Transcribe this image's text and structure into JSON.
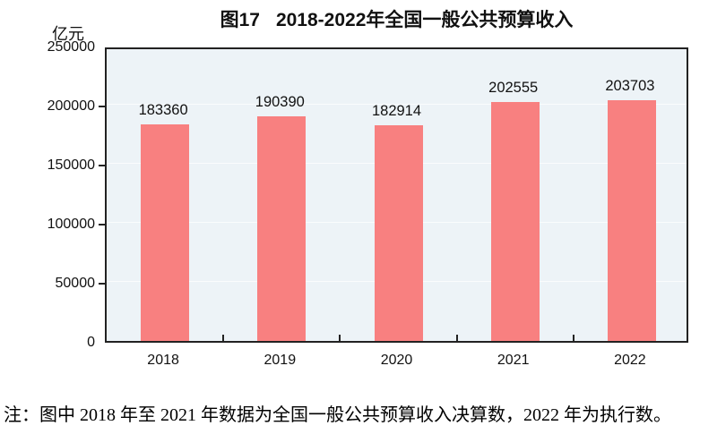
{
  "header": {
    "figure_label": "图17",
    "title": "2018-2022年全国一般公共预算收入"
  },
  "chart_data": {
    "type": "bar",
    "title": "图17　2018-2022年全国一般公共预算收入",
    "categories": [
      "2018",
      "2019",
      "2020",
      "2021",
      "2022"
    ],
    "values": [
      183360,
      190390,
      182914,
      202555,
      203703
    ],
    "xlabel": "",
    "ylabel": "亿元",
    "ylim": [
      0,
      250000
    ],
    "yticks": [
      0,
      50000,
      100000,
      150000,
      200000,
      250000
    ],
    "grid": true,
    "legend": "none",
    "data_labels": true,
    "colors": {
      "bar": "#F88080",
      "plot_background": "#EDF3F7",
      "axis": "#222222",
      "gridline": "#FAFCFD",
      "text": "#111111"
    }
  },
  "note": {
    "text": "注：图中 2018 年至 2021 年数据为全国一般公共预算收入决算数，2022 年为执行数。"
  }
}
